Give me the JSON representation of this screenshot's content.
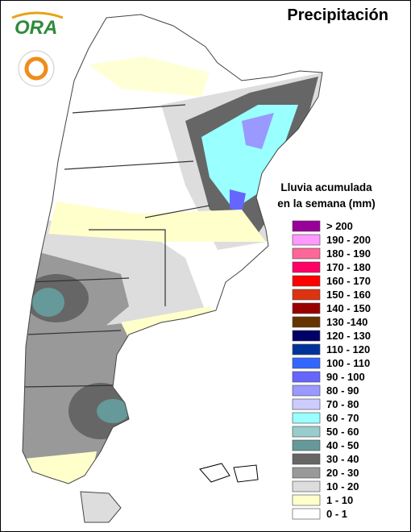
{
  "header": {
    "title": "Precipitación",
    "logo": "ORA"
  },
  "legend": {
    "title": [
      "Lluvia acumulada",
      "en la semana (mm)"
    ],
    "items": [
      {
        "label": "> 200",
        "color": "#990099"
      },
      {
        "label": "190 - 200",
        "color": "#ff99ff"
      },
      {
        "label": "180 - 190",
        "color": "#ff6699"
      },
      {
        "label": "170 - 180",
        "color": "#ff0066"
      },
      {
        "label": "160 - 170",
        "color": "#ff0000"
      },
      {
        "label": "150 - 160",
        "color": "#dd3311"
      },
      {
        "label": "140 - 150",
        "color": "#990000"
      },
      {
        "label": "130 -140",
        "color": "#663300"
      },
      {
        "label": "120 - 130",
        "color": "#000066"
      },
      {
        "label": "110 - 120",
        "color": "#003399"
      },
      {
        "label": "100 - 110",
        "color": "#3366ff"
      },
      {
        "label": "90 - 100",
        "color": "#6666ff"
      },
      {
        "label": "80 - 90",
        "color": "#9999ff"
      },
      {
        "label": "70 - 80",
        "color": "#ccccff"
      },
      {
        "label": "60 - 70",
        "color": "#99ffff"
      },
      {
        "label": "50 - 60",
        "color": "#99cccc"
      },
      {
        "label": "40 - 50",
        "color": "#669999"
      },
      {
        "label": "30 - 40",
        "color": "#666666"
      },
      {
        "label": "20 - 30",
        "color": "#999999"
      },
      {
        "label": "10 - 20",
        "color": "#dddddd"
      },
      {
        "label": "1 - 10",
        "color": "#ffffcc"
      },
      {
        "label": "0 - 1",
        "color": "#ffffff"
      }
    ]
  }
}
